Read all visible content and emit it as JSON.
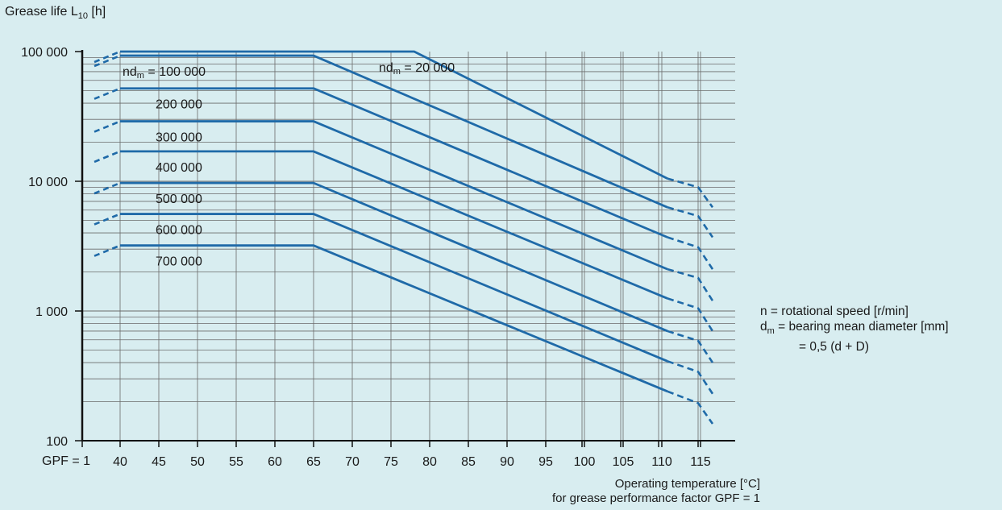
{
  "chart_data": {
    "type": "line",
    "y_title": "Grease life L",
    "y_title_sub": "10",
    "y_title_unit": " [h]",
    "y_scale": "log",
    "ylim": [
      100,
      100000
    ],
    "y_tick_labels": [
      "100 000",
      "10 000",
      "1 000",
      "100"
    ],
    "y_tick_values": [
      100000,
      10000,
      1000,
      100
    ],
    "x_tick_values": [
      40,
      45,
      50,
      55,
      60,
      65,
      70,
      75,
      80,
      85,
      90,
      95,
      100,
      105,
      110,
      115
    ],
    "x_tick_labels": [
      "40",
      "45",
      "50",
      "55",
      "60",
      "65",
      "70",
      "75",
      "80",
      "85",
      "90",
      "95",
      "100",
      "105",
      "110",
      "115"
    ],
    "gpf_label": "GPF = 1",
    "x_caption": [
      "Operating temperature [°C]",
      "for grease performance factor GPF = 1"
    ],
    "grid": true,
    "series": [
      {
        "name": "nd",
        "name_sub": "m",
        "name_tail": " = 20 000",
        "value_label": "20 000",
        "plateau": 100000,
        "knee_x": 78,
        "end": 9000,
        "solid_end": 10500,
        "dash_end": 6300
      },
      {
        "name": "nd",
        "name_sub": "m",
        "name_tail": " = 100 000",
        "value_label": "100 000",
        "plateau": 93000,
        "knee_x": 65,
        "end": 5400,
        "solid_end": 6300,
        "dash_end": 3700
      },
      {
        "name": "",
        "value_label": "200 000",
        "plateau": 52000,
        "knee_x": 65,
        "end": 3100,
        "solid_end": 3700,
        "dash_end": 2100
      },
      {
        "name": "",
        "value_label": "300 000",
        "plateau": 29000,
        "knee_x": 65,
        "end": 1800,
        "solid_end": 2100,
        "dash_end": 1200
      },
      {
        "name": "",
        "value_label": "400 000",
        "plateau": 17000,
        "knee_x": 65,
        "end": 1050,
        "solid_end": 1250,
        "dash_end": 700
      },
      {
        "name": "",
        "value_label": "500 000",
        "plateau": 9700,
        "knee_x": 65,
        "end": 590,
        "solid_end": 700,
        "dash_end": 400
      },
      {
        "name": "",
        "value_label": "600 000",
        "plateau": 5600,
        "knee_x": 65,
        "end": 340,
        "solid_end": 410,
        "dash_end": 230
      },
      {
        "name": "",
        "value_label": "700 000",
        "plateau": 3200,
        "knee_x": 65,
        "end": 195,
        "solid_end": 240,
        "dash_end": 135
      }
    ],
    "line_color": "#1f6aa8"
  },
  "notes": {
    "line1": "n = rotational speed [r/min]",
    "line2_sym": "d",
    "line2_sub": "m",
    "line2_rest": " = bearing mean diameter [mm]",
    "line3": "= 0,5 (d + D)"
  }
}
